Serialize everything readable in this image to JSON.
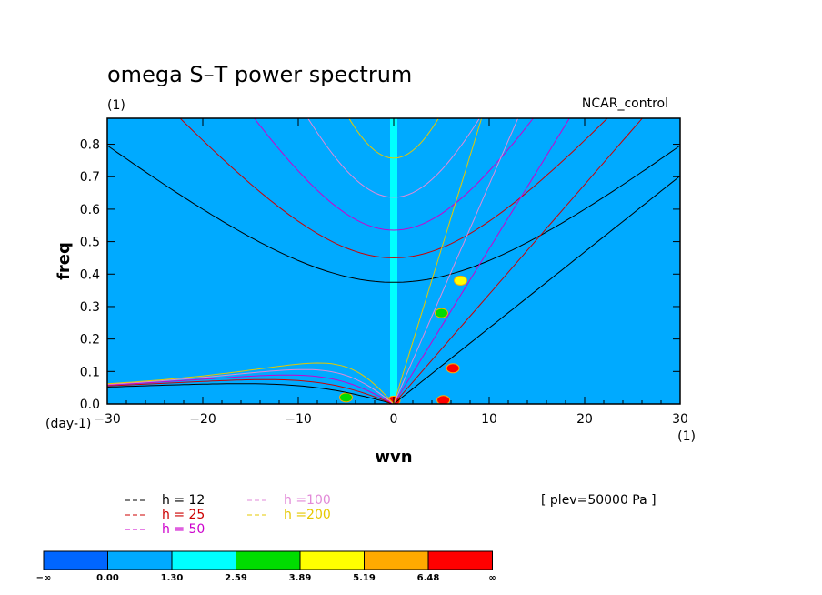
{
  "chart_data": {
    "type": "heatmap",
    "title": "omega S–T power spectrum",
    "subtitle": "(1)",
    "case_label": "NCAR_control",
    "level_label": "[ plev=50000 Pa ]",
    "xlabel": "wvn",
    "ylabel": "freq",
    "x_unit": "(1)",
    "y_unit": "(day-1)",
    "xlim": [
      -30,
      30
    ],
    "ylim": [
      0,
      0.88
    ],
    "x_ticks": [
      -30,
      -20,
      -10,
      0,
      10,
      20,
      30
    ],
    "x_tick_labels": [
      "−30",
      "−20",
      "−10",
      "0",
      "10",
      "20",
      "30"
    ],
    "y_ticks": [
      0,
      0.1,
      0.2,
      0.3,
      0.4,
      0.5,
      0.6,
      0.7,
      0.8
    ],
    "y_tick_labels": [
      "0.0",
      "0.1",
      "0.2",
      "0.3",
      "0.4",
      "0.5",
      "0.6",
      "0.7",
      "0.8"
    ],
    "background_level": "0.00 to 1.30",
    "features": [
      {
        "name": "zonal-mean-column",
        "x": 0,
        "y_range": [
          0.02,
          0.88
        ],
        "level": "1.30 to 2.59"
      },
      {
        "name": "kelvin-band-1",
        "x": 5,
        "y": 0.28,
        "level": "2.59 to 3.89"
      },
      {
        "name": "kelvin-band-2",
        "x": 7,
        "y": 0.38,
        "level": "3.89 to 5.19"
      },
      {
        "name": "kelvin-peak-1",
        "x": 6.2,
        "y": 0.11,
        "level": "6.48 to ∞"
      },
      {
        "name": "kelvin-peak-2",
        "x": 5.2,
        "y": 0.012,
        "level": "6.48 to ∞"
      },
      {
        "name": "low-wvn-peak",
        "x": -5,
        "y": 0.02,
        "level": "2.59 to 3.89"
      },
      {
        "name": "origin-peak",
        "x": 0,
        "y": 0.01,
        "level": "6.48 to ∞"
      }
    ],
    "dispersion_curves": [
      {
        "name": "h = 12",
        "h": 12,
        "color": "#000000"
      },
      {
        "name": "h = 25",
        "h": 25,
        "color": "#cc0000"
      },
      {
        "name": "h = 50",
        "h": 50,
        "color": "#cc00cc"
      },
      {
        "name": "h =100",
        "h": 100,
        "color": "#e28ad8"
      },
      {
        "name": "h =200",
        "h": 200,
        "color": "#e6c800"
      }
    ],
    "colorbar": {
      "labels": [
        "−∞",
        "0.00",
        "1.30",
        "2.59",
        "3.89",
        "5.19",
        "6.48",
        "∞"
      ],
      "colors": [
        "#0066ff",
        "#00aaff",
        "#00ffff",
        "#00dd00",
        "#ffff00",
        "#ffaa00",
        "#ff0000"
      ]
    }
  }
}
